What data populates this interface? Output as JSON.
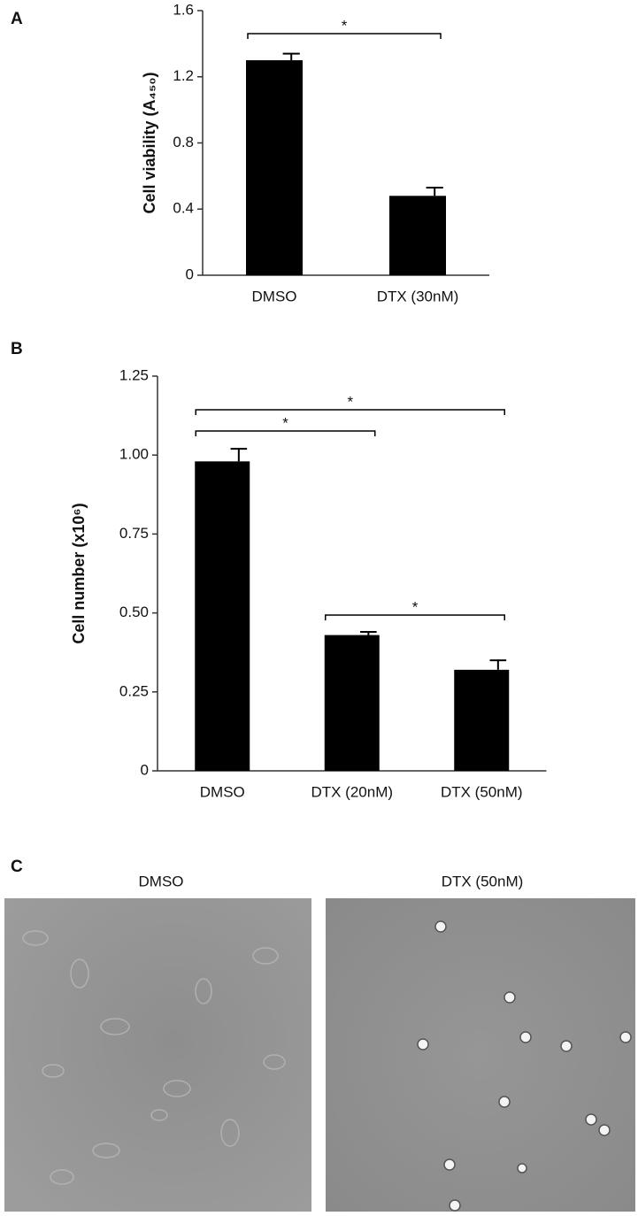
{
  "panel_labels": [
    "A",
    "B",
    "C"
  ],
  "chart_data": [
    {
      "type": "bar",
      "y_label": "Cell viability (A₄₅₀)",
      "categories": [
        "DMSO",
        "DTX (30nM)"
      ],
      "values": [
        1.3,
        0.48
      ],
      "errors": [
        0.04,
        0.05
      ],
      "color": "#000000",
      "ylim": [
        0,
        1.6
      ],
      "yticks": [
        0,
        0.4,
        0.8,
        1.2,
        1.6
      ],
      "comparisons": [
        {
          "groups": [
            "DMSO",
            "DTX (30nM)"
          ],
          "label": "*"
        }
      ]
    },
    {
      "type": "bar",
      "y_label": "Cell number (x10⁶)",
      "categories": [
        "DMSO",
        "DTX (20nM)",
        "DTX (50nM)"
      ],
      "values": [
        0.98,
        0.43,
        0.32
      ],
      "errors": [
        0.04,
        0.01,
        0.03
      ],
      "color": "#000000",
      "ylim": [
        0,
        1.25
      ],
      "yticks": [
        0,
        0.25,
        {
          "value": 0.5,
          "label": "0.50"
        },
        0.75,
        {
          "value": 1,
          "label": "1.00"
        },
        1.25
      ],
      "comparisons": [
        {
          "groups": [
            "DMSO",
            "DTX (50nM)"
          ],
          "label": "*"
        },
        {
          "groups": [
            "DMSO",
            "DTX (20nM)"
          ],
          "label": "*"
        },
        {
          "groups": [
            "DTX (20nM)",
            "DTX (50nM)"
          ],
          "label": "*"
        }
      ]
    }
  ],
  "images": [
    {
      "caption": "DMSO"
    },
    {
      "caption": "DTX (50nM)"
    }
  ]
}
